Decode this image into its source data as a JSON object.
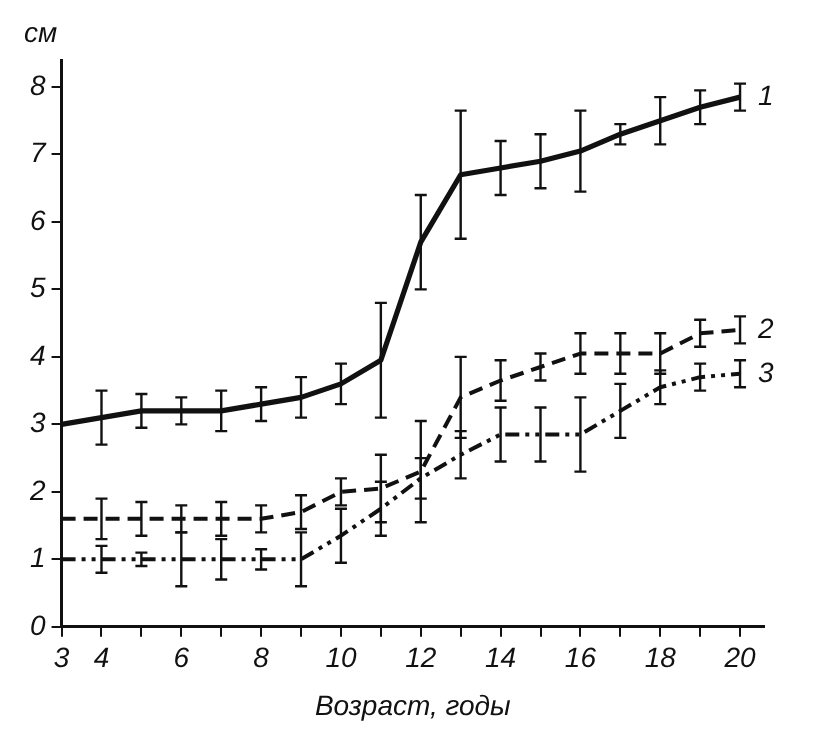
{
  "chart_data": {
    "type": "line",
    "ylabel": "см",
    "xlabel": "Возраст, годы",
    "x": [
      3,
      4,
      5,
      6,
      7,
      8,
      9,
      10,
      11,
      12,
      13,
      14,
      15,
      16,
      17,
      18,
      19,
      20
    ],
    "series": [
      {
        "name": "1",
        "color": "#111111",
        "line_style": "solid",
        "values": [
          3.0,
          3.1,
          3.2,
          3.2,
          3.2,
          3.3,
          3.4,
          3.6,
          3.95,
          5.7,
          6.7,
          6.8,
          6.9,
          7.05,
          7.3,
          7.5,
          7.7,
          7.85
        ],
        "errors": [
          null,
          0.4,
          0.25,
          0.2,
          0.3,
          0.25,
          0.3,
          0.3,
          0.85,
          0.7,
          0.95,
          0.4,
          0.4,
          0.6,
          0.15,
          0.35,
          0.25,
          0.2
        ]
      },
      {
        "name": "2",
        "color": "#111111",
        "line_style": "dashed",
        "values": [
          1.6,
          1.6,
          1.6,
          1.6,
          1.6,
          1.6,
          1.7,
          2.0,
          2.05,
          2.3,
          3.4,
          3.65,
          3.85,
          4.05,
          4.05,
          4.05,
          4.35,
          4.4
        ],
        "errors": [
          null,
          0.3,
          0.25,
          0.2,
          0.25,
          0.2,
          0.25,
          0.2,
          0.5,
          0.75,
          0.6,
          0.3,
          0.2,
          0.3,
          0.3,
          0.3,
          0.2,
          0.2
        ]
      },
      {
        "name": "3",
        "color": "#111111",
        "line_style": "dotted",
        "values": [
          1.0,
          1.0,
          1.0,
          1.0,
          1.0,
          1.0,
          1.0,
          1.35,
          1.75,
          2.2,
          2.55,
          2.85,
          2.85,
          2.85,
          3.2,
          3.55,
          3.7,
          3.75
        ],
        "errors": [
          null,
          0.2,
          0.1,
          0.4,
          0.3,
          0.15,
          0.4,
          0.4,
          0.4,
          0.3,
          0.35,
          0.4,
          0.4,
          0.55,
          0.4,
          0.25,
          0.2,
          0.2
        ]
      }
    ],
    "xlim": [
      3,
      20.6
    ],
    "ylim": [
      0,
      8.4
    ],
    "xticks": [
      3,
      4,
      {
        "value": 5,
        "label": null
      },
      6,
      {
        "value": 7,
        "label": null
      },
      8,
      {
        "value": 9,
        "label": null
      },
      10,
      {
        "value": 11,
        "label": null
      },
      12,
      {
        "value": 13,
        "label": null
      },
      14,
      {
        "value": 15,
        "label": null
      },
      16,
      {
        "value": 17,
        "label": null
      },
      18,
      {
        "value": 19,
        "label": null
      },
      20
    ],
    "yticks": [
      0,
      1,
      2,
      3,
      4,
      5,
      6,
      7,
      8
    ],
    "grid": false,
    "legend": false,
    "marker": "none"
  }
}
